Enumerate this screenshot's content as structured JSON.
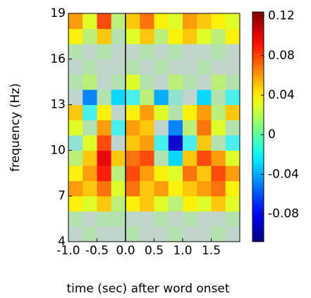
{
  "chart_data": {
    "type": "heatmap",
    "xlabel": "time (sec) after word onset",
    "ylabel": "frequency (Hz)",
    "x_edges": [
      -1,
      -0.75,
      -0.5,
      -0.25,
      0,
      0.25,
      0.5,
      0.75,
      1,
      1.25,
      1.5,
      1.75,
      2
    ],
    "y_edges": [
      4,
      5,
      6,
      7,
      8,
      9,
      10,
      11,
      12,
      13,
      14,
      15,
      16,
      17,
      18,
      19
    ],
    "z": [
      [
        0,
        0.01,
        0,
        0,
        0.01,
        0,
        0,
        0.01,
        0,
        0,
        0.01,
        0
      ],
      [
        0.01,
        0,
        0.01,
        0.01,
        0,
        0,
        0.01,
        0,
        0.01,
        0,
        0,
        0.01
      ],
      [
        0.04,
        0.03,
        0.05,
        0.02,
        0.04,
        0.05,
        0.03,
        0.02,
        0.04,
        0.03,
        0.05,
        0.03
      ],
      [
        0.06,
        0.05,
        0.07,
        0.03,
        0.07,
        0.05,
        0.06,
        0.04,
        0.05,
        0.06,
        0.07,
        0.04
      ],
      [
        0.04,
        0.06,
        0.09,
        0.02,
        0.08,
        0.06,
        0.04,
        0.03,
        0.07,
        0.05,
        0.08,
        0.06
      ],
      [
        0.02,
        0.05,
        0.1,
        0.05,
        0.07,
        0.08,
        0.01,
        -0.03,
        0.05,
        0.08,
        0.06,
        0.03
      ],
      [
        -0.01,
        0.03,
        0.08,
        0,
        0.05,
        0.06,
        -0.02,
        -0.09,
        -0.02,
        0.05,
        0.01,
        -0.02
      ],
      [
        0.03,
        0.01,
        0.06,
        -0.02,
        0.06,
        0.05,
        0,
        -0.05,
        0.02,
        0.07,
        0.03,
        0.01
      ],
      [
        0.05,
        -0.02,
        0.04,
        0,
        0.04,
        0.06,
        0.03,
        0.01,
        0.04,
        0.06,
        0.02,
        0.05
      ],
      [
        0,
        -0.05,
        0.01,
        -0.03,
        -0.02,
        0.02,
        -0.04,
        -0.01,
        0,
        -0.03,
        0.01,
        -0.02
      ],
      [
        0.01,
        0.02,
        0,
        0.01,
        0.03,
        0.01,
        0,
        0.02,
        0.01,
        0,
        0.02,
        0.01
      ],
      [
        0,
        0.01,
        0,
        0,
        0.01,
        0,
        0.01,
        0,
        0,
        0.01,
        0,
        0
      ],
      [
        0.01,
        0,
        0.01,
        0,
        0,
        0.01,
        0,
        0.01,
        0,
        0,
        0.01,
        0
      ],
      [
        0.04,
        0.02,
        0.05,
        0.01,
        0.03,
        0.05,
        0.02,
        0.04,
        0.05,
        0.03,
        0.02,
        0.04
      ],
      [
        0.06,
        0.03,
        0.08,
        0.02,
        0.05,
        0.07,
        0.04,
        0.03,
        0.06,
        0.05,
        0.04,
        0.03
      ]
    ],
    "xlim": [
      -1,
      2
    ],
    "ylim": [
      4,
      19
    ],
    "zlim": [
      -0.108,
      0.124
    ],
    "xticks": [
      {
        "value": -1,
        "label": "-1.0"
      },
      {
        "value": -0.5,
        "label": "-0.5"
      },
      {
        "value": 0,
        "label": "0.0"
      },
      {
        "value": 0.5,
        "label": "0.5"
      },
      {
        "value": 1,
        "label": "1.0"
      },
      {
        "value": 1.5,
        "label": "1.5"
      }
    ],
    "yticks": [
      4,
      7,
      10,
      13,
      16,
      19
    ],
    "zticks": [
      0.12,
      0.08,
      0.04,
      0,
      -0.04,
      -0.08
    ],
    "colormap": "jet",
    "vline_x": 0
  }
}
